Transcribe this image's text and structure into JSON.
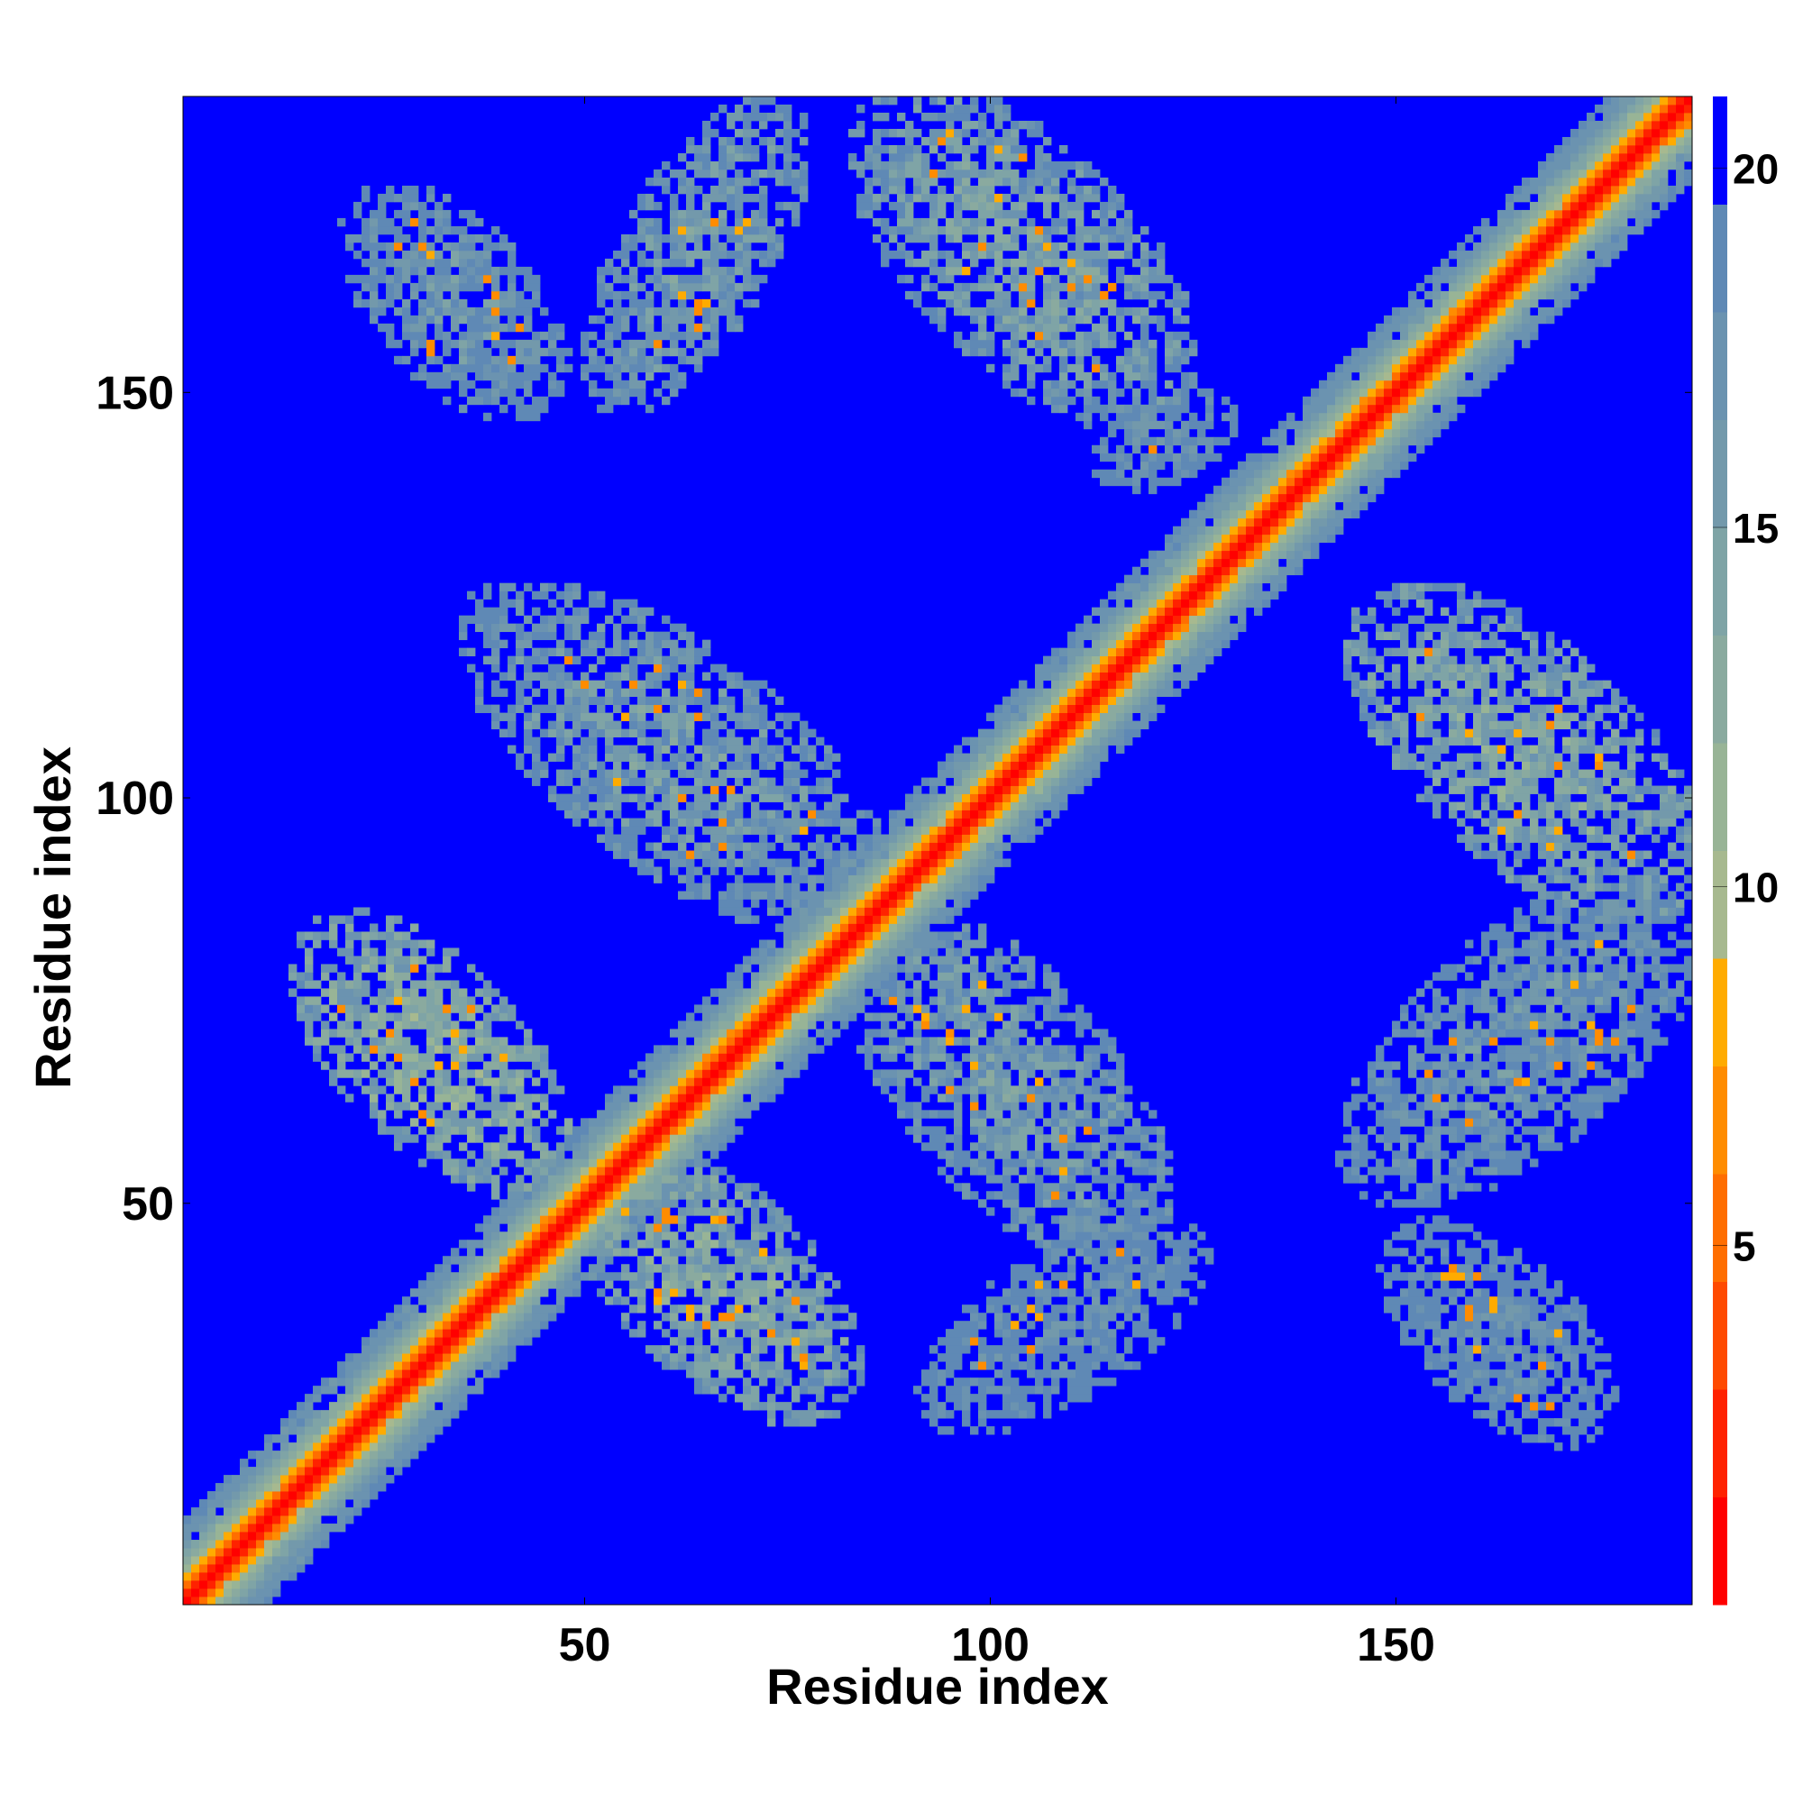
{
  "chart_data": {
    "type": "heatmap",
    "title": "",
    "xlabel": "Residue index",
    "ylabel": "Residue index",
    "xlim": [
      1,
      186
    ],
    "ylim": [
      1,
      186
    ],
    "x_ticks": [
      50,
      100,
      150
    ],
    "y_ticks": [
      50,
      100,
      150
    ],
    "colorbar": {
      "range": [
        0,
        21
      ],
      "ticks": [
        5,
        10,
        15,
        20
      ],
      "levels": [
        {
          "max": 1.5,
          "color": "#ff0000"
        },
        {
          "max": 3,
          "color": "#ff2200"
        },
        {
          "max": 4.5,
          "color": "#ff4a00"
        },
        {
          "max": 6,
          "color": "#ff6e00"
        },
        {
          "max": 7.5,
          "color": "#ff8c00"
        },
        {
          "max": 9,
          "color": "#ffab00"
        },
        {
          "max": 10.5,
          "color": "#a7b98f"
        },
        {
          "max": 12,
          "color": "#98b496"
        },
        {
          "max": 13.5,
          "color": "#8aaa9f"
        },
        {
          "max": 15,
          "color": "#7fa4a6"
        },
        {
          "max": 16.5,
          "color": "#7399ab"
        },
        {
          "max": 18,
          "color": "#6b93b0"
        },
        {
          "max": 19.5,
          "color": "#5f89b5"
        },
        {
          "max": 21,
          "color": "#0000ff"
        }
      ]
    },
    "values_description_free": "",
    "diagonal_band": {
      "center_value": 1,
      "half_width_residues": 10,
      "values_by_offset": [
        1,
        3,
        5,
        8,
        11,
        13,
        15,
        16,
        17,
        18,
        19
      ]
    },
    "contact_regions": [
      {
        "x": [
          16,
          46
        ],
        "y": [
          53,
          84
        ],
        "mean": 13,
        "anti": true
      },
      {
        "x": [
          50,
          82
        ],
        "y": [
          25,
          56
        ],
        "mean": 14,
        "anti": true
      },
      {
        "x": [
          36,
          86
        ],
        "y": [
          86,
          124
        ],
        "mean": 16,
        "anti": true
      },
      {
        "x": [
          84,
          120
        ],
        "y": [
          44,
          86
        ],
        "mean": 16,
        "anti": true
      },
      {
        "x": [
          22,
          46
        ],
        "y": [
          148,
          174
        ],
        "mean": 17,
        "anti": true
      },
      {
        "x": [
          52,
          75
        ],
        "y": [
          148,
          186
        ],
        "mean": 16,
        "anti": false
      },
      {
        "x": [
          85,
          123
        ],
        "y": [
          148,
          186
        ],
        "mean": 15,
        "anti": true
      },
      {
        "x": [
          113,
          130
        ],
        "y": [
          140,
          148
        ],
        "mean": 18,
        "anti": false
      },
      {
        "x": [
          146,
          186
        ],
        "y": [
          87,
          124
        ],
        "mean": 14,
        "anti": true
      },
      {
        "x": [
          145,
          186
        ],
        "y": [
          52,
          88
        ],
        "mean": 17,
        "anti": false
      },
      {
        "x": [
          92,
          126
        ],
        "y": [
          24,
          46
        ],
        "mean": 18,
        "anti": false
      },
      {
        "x": [
          150,
          175
        ],
        "y": [
          22,
          46
        ],
        "mean": 18,
        "anti": true
      }
    ]
  }
}
